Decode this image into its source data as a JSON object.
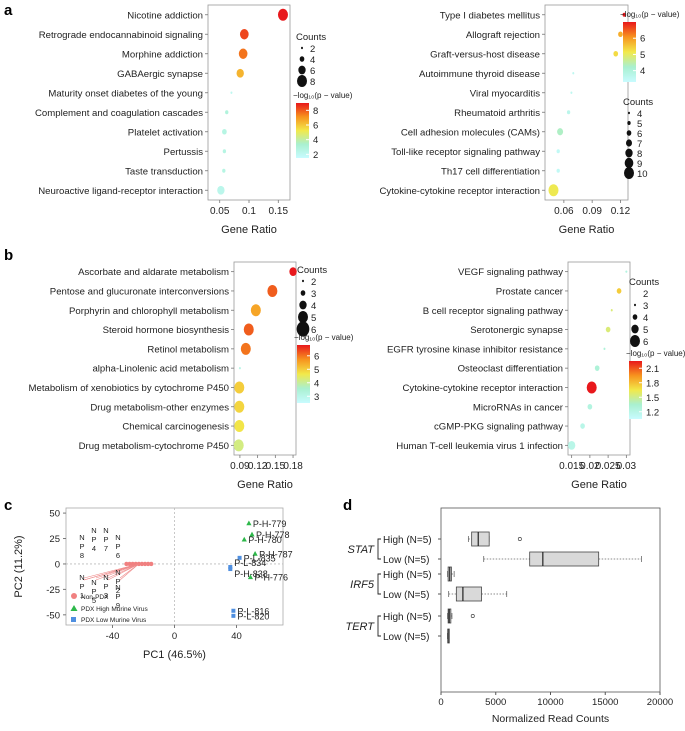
{
  "panel_labels": {
    "a": "a",
    "b": "b",
    "c": "c",
    "d": "d"
  },
  "legend_text": {
    "counts": "Counts",
    "pvalue": "−log₁₀(p − value)",
    "non_pdx": "Non-PDX",
    "pdx_high": "PDX High Murine Virus",
    "pdx_low": "PDX Low Murine Virus"
  },
  "chart_data": [
    {
      "id": "a-left",
      "type": "scatter",
      "xlabel": "Gene Ratio",
      "xlim": [
        0.03,
        0.17
      ],
      "xticks": [
        "0.05",
        "0.1",
        "0.15"
      ],
      "xtick_values": [
        0.05,
        0.1,
        0.15
      ],
      "pathways": [
        "Nicotine addiction",
        "Retrograde endocannabinoid signaling",
        "Morphine addiction",
        "GABAergic synapse",
        "Maturity onset diabetes of the young",
        "Complement and coagulation cascades",
        "Platelet activation",
        "Pertussis",
        "Taste transduction",
        "Neuroactive ligand-receptor interaction"
      ],
      "gene_ratio": [
        0.158,
        0.092,
        0.09,
        0.085,
        0.07,
        0.062,
        0.058,
        0.058,
        0.057,
        0.052
      ],
      "counts": [
        8,
        7,
        7,
        6,
        2,
        3,
        4,
        3,
        3,
        6
      ],
      "neg_log10_p": [
        9.0,
        8.3,
        7.6,
        6.4,
        2.1,
        2.9,
        2.6,
        2.6,
        2.6,
        2.3
      ],
      "size_legend": [
        2,
        4,
        6,
        8
      ],
      "color_ticks": [
        2,
        4,
        6,
        8
      ],
      "color_range": [
        1.5,
        9.0
      ]
    },
    {
      "id": "a-right",
      "type": "scatter",
      "xlabel": "Gene Ratio",
      "xlim": [
        0.04,
        0.128
      ],
      "xticks": [
        "0.06",
        "0.09",
        "0.12"
      ],
      "xtick_values": [
        0.06,
        0.09,
        0.12
      ],
      "pathways": [
        "Type I diabetes mellitus",
        "Allograft rejection",
        "Graft-versus-host disease",
        "Autoimmune thyroid disease",
        "Viral myocarditis",
        "Rheumatoid arthritis",
        "Cell adhesion molecules (CAMs)",
        "Toll-like receptor signaling pathway",
        "Th17 cell differentiation",
        "Cytokine-cytokine receptor interaction"
      ],
      "gene_ratio": [
        0.124,
        0.12,
        0.115,
        0.07,
        0.068,
        0.065,
        0.056,
        0.054,
        0.054,
        0.049
      ],
      "counts": [
        5,
        6,
        6,
        4,
        4,
        5,
        7,
        5,
        5,
        10
      ],
      "neg_log10_p": [
        7.0,
        5.8,
        5.3,
        3.6,
        3.6,
        3.7,
        4.3,
        3.5,
        3.5,
        5.1
      ],
      "size_legend": [
        4,
        5,
        6,
        7,
        8,
        9,
        10
      ],
      "color_ticks": [
        4,
        5,
        6
      ],
      "color_range": [
        3.3,
        7.0
      ]
    },
    {
      "id": "b-left",
      "type": "scatter",
      "xlabel": "Gene Ratio",
      "xlim": [
        0.08,
        0.185
      ],
      "xticks": [
        "0.09",
        "0.12",
        "0.15",
        "0.18"
      ],
      "xtick_values": [
        0.09,
        0.12,
        0.15,
        0.18
      ],
      "pathways": [
        "Ascorbate and aldarate metabolism",
        "Pentose and glucuronate interconversions",
        "Porphyrin and chlorophyll metabolism",
        "Steroid hormone biosynthesis",
        "Retinol metabolism",
        "alpha-Linolenic acid metabolism",
        "Metabolism of xenobiotics by cytochrome P450",
        "Drug metabolism-other enzymes",
        "Chemical carcinogenesis",
        "Drug metabolism-cytochrome P450"
      ],
      "gene_ratio": [
        0.18,
        0.145,
        0.117,
        0.105,
        0.1,
        0.09,
        0.089,
        0.089,
        0.089,
        0.088
      ],
      "counts": [
        4,
        5,
        5,
        5,
        5,
        2,
        5,
        5,
        5,
        5
      ],
      "neg_log10_p": [
        6.8,
        6.2,
        5.5,
        6.2,
        6.0,
        3.1,
        5.0,
        4.9,
        4.7,
        4.2
      ],
      "size_legend": [
        2,
        3,
        4,
        5,
        6
      ],
      "color_ticks": [
        3,
        4,
        5,
        6
      ],
      "color_range": [
        2.5,
        6.8
      ]
    },
    {
      "id": "b-right",
      "type": "scatter",
      "xlabel": "Gene Ratio",
      "xlim": [
        0.014,
        0.031
      ],
      "xticks": [
        "0.015",
        "0.02",
        "0.025",
        "0.03"
      ],
      "xtick_values": [
        0.015,
        0.02,
        0.025,
        0.03
      ],
      "pathways": [
        "VEGF signaling pathway",
        "Prostate cancer",
        "B cell receptor signaling pathway",
        "Serotonergic synapse",
        "EGFR tyrosine kinase inhibitor resistance",
        "Osteoclast differentiation",
        "Cytokine-cytokine receptor interaction",
        "MicroRNAs in cancer",
        "cGMP-PKG signaling pathway",
        "Human T-cell leukemia virus 1 infection"
      ],
      "gene_ratio": [
        0.03,
        0.028,
        0.026,
        0.025,
        0.024,
        0.022,
        0.0205,
        0.02,
        0.018,
        0.015
      ],
      "counts": [
        3,
        4,
        3,
        4,
        3,
        4,
        6,
        4,
        4,
        5
      ],
      "neg_log10_p": [
        1.25,
        1.75,
        1.55,
        1.55,
        1.3,
        1.3,
        2.25,
        1.25,
        1.2,
        1.2
      ],
      "size_legend": [
        2,
        3,
        4,
        5,
        6
      ],
      "color_ticks": [
        1.2,
        1.5,
        1.8,
        2.1
      ],
      "color_range": [
        1.05,
        2.25
      ]
    },
    {
      "id": "c",
      "type": "scatter",
      "xlabel": "PC1 (46.5%)",
      "ylabel": "PC2 (11.2%)",
      "xlim": [
        -70,
        70
      ],
      "ylim": [
        -60,
        55
      ],
      "xticks": [
        "-40",
        "0",
        "40"
      ],
      "xtick_values": [
        -40,
        0,
        40
      ],
      "yticks": [
        "50",
        "25",
        "0",
        "-25",
        "-50"
      ],
      "ytick_values": [
        50,
        25,
        0,
        -25,
        -50
      ],
      "series": [
        {
          "name": "Non-PDX",
          "points": [
            [
              -31,
              0
            ],
            [
              -29,
              0
            ],
            [
              -27,
              0
            ],
            [
              -25,
              0
            ],
            [
              -23,
              0
            ],
            [
              -21,
              0
            ],
            [
              -19,
              0
            ],
            [
              -17,
              0
            ],
            [
              -15,
              0
            ]
          ],
          "labels": [
            "NP8",
            "NP4",
            "NP7",
            "NP6",
            "NP1",
            "NP5",
            "NP3",
            "NP2",
            "NP9"
          ]
        },
        {
          "name": "PDX High Murine Virus",
          "points": [
            [
              48,
              40
            ],
            [
              50,
              29
            ],
            [
              45,
              24
            ],
            [
              52,
              10
            ],
            [
              49,
              -13
            ]
          ],
          "labels": [
            "P-H-779",
            "P-H-778",
            "P-H-780",
            "P-H-787",
            "P-H-776"
          ]
        },
        {
          "name": "PDX Low Murine Virus",
          "points": [
            [
              42,
              6
            ],
            [
              36,
              -3
            ],
            [
              36,
              -5
            ],
            [
              38,
              -46
            ],
            [
              38,
              -51
            ]
          ],
          "labels": [
            "P-L-835",
            "P-L-834",
            "P-H-838",
            "P-L-816",
            "P-L-820"
          ]
        }
      ]
    },
    {
      "id": "d",
      "type": "box",
      "xlabel": "Normalized Read Counts",
      "xlim": [
        0,
        20000
      ],
      "xticks": [
        "0",
        "5000",
        "10000",
        "15000",
        "20000"
      ],
      "xtick_values": [
        0,
        5000,
        10000,
        15000,
        20000
      ],
      "genes": [
        "STAT",
        "IRF5",
        "TERT"
      ],
      "group_labels": [
        "High (N=5)",
        "Low (N=5)"
      ],
      "boxes": [
        {
          "gene": "STAT",
          "group": "High (N=5)",
          "min": 2500,
          "q1": 2800,
          "median": 3400,
          "q3": 4400,
          "max": 4400,
          "outliers": [
            7200
          ]
        },
        {
          "gene": "STAT",
          "group": "Low (N=5)",
          "min": 3900,
          "q1": 8100,
          "median": 9300,
          "q3": 14400,
          "max": 18300,
          "outliers": []
        },
        {
          "gene": "IRF5",
          "group": "High (N=5)",
          "min": 600,
          "q1": 650,
          "median": 800,
          "q3": 950,
          "max": 1200,
          "outliers": []
        },
        {
          "gene": "IRF5",
          "group": "Low (N=5)",
          "min": 700,
          "q1": 1400,
          "median": 2000,
          "q3": 3700,
          "max": 6000,
          "outliers": []
        },
        {
          "gene": "TERT",
          "group": "High (N=5)",
          "min": 600,
          "q1": 650,
          "median": 750,
          "q3": 900,
          "max": 1000,
          "outliers": [
            2900
          ]
        },
        {
          "gene": "TERT",
          "group": "Low (N=5)",
          "min": 600,
          "q1": 620,
          "median": 650,
          "q3": 680,
          "max": 700,
          "outliers": []
        }
      ]
    }
  ]
}
